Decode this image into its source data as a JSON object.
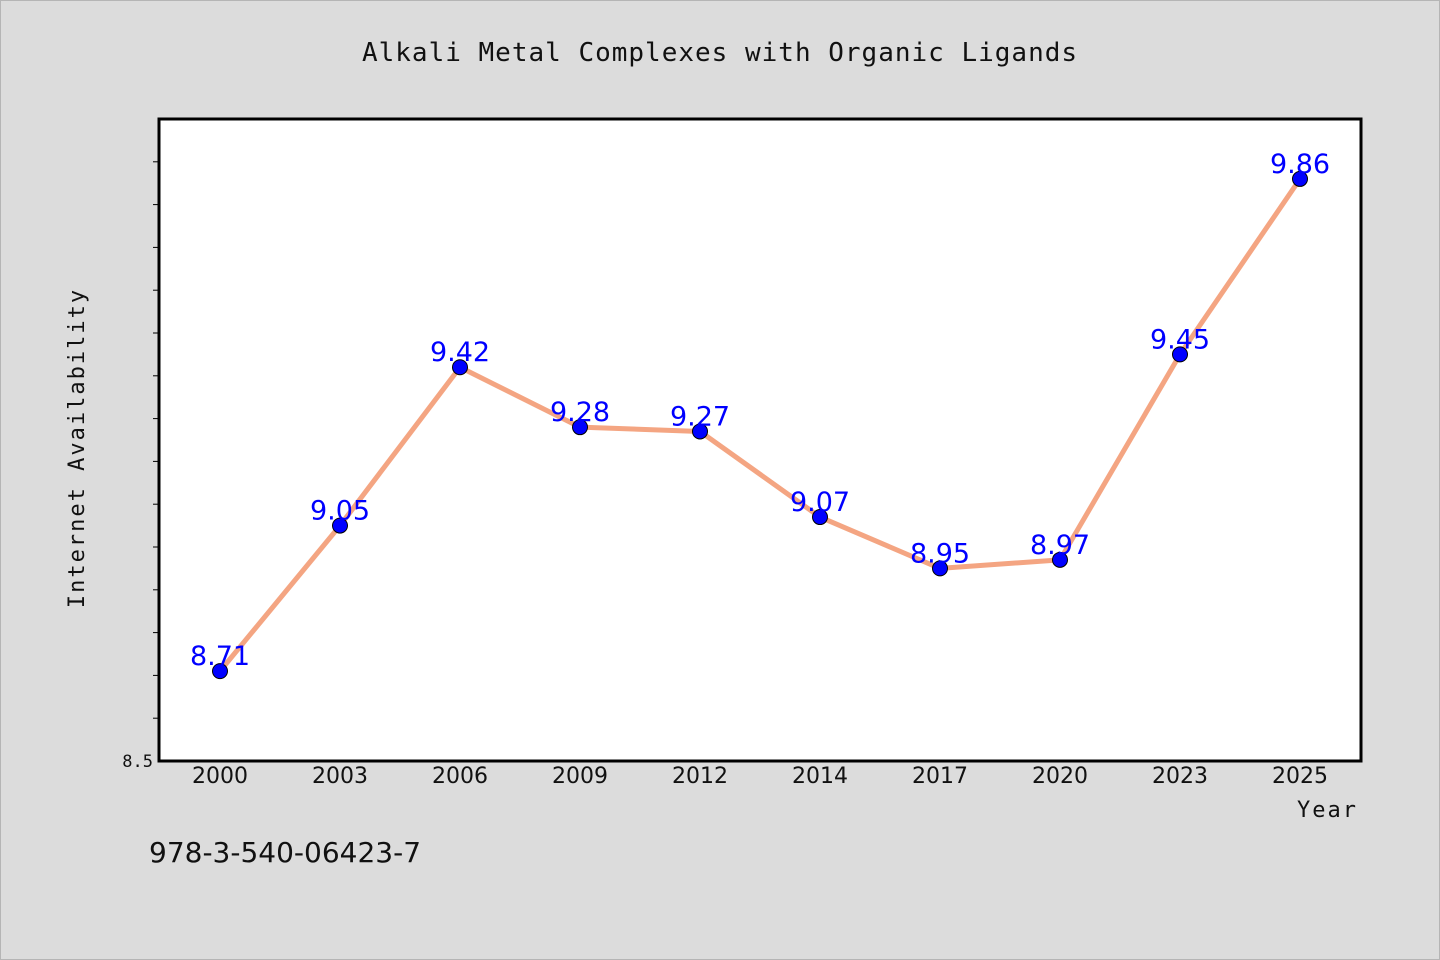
{
  "chart_data": {
    "type": "line",
    "title": "Alkali Metal Complexes with Organic Ligands",
    "xlabel": "Year",
    "ylabel": "Internet Availability",
    "categories": [
      "2000",
      "2003",
      "2006",
      "2009",
      "2012",
      "2014",
      "2017",
      "2020",
      "2023",
      "2025"
    ],
    "series": [
      {
        "values": [
          8.71,
          9.05,
          9.42,
          9.28,
          9.27,
          9.07,
          8.95,
          8.97,
          9.45,
          9.86
        ]
      }
    ],
    "data_labels": [
      "8.71",
      "9.05",
      "9.42",
      "9.28",
      "9.27",
      "9.07",
      "8.95",
      "8.97",
      "9.45",
      "9.86"
    ],
    "y_tick_labels": [
      "8.5"
    ],
    "ylim": [
      8.5,
      10.0
    ],
    "y_minor_step": 0.1,
    "grid": false,
    "legend": "none",
    "colors": {
      "line": "#f4a582",
      "marker": "#0000ff",
      "data_label": "#0000ff",
      "background": "#dcdcdc",
      "plot_background": "#ffffff"
    }
  },
  "footer": {
    "isbn": "978-3-540-06423-7"
  }
}
